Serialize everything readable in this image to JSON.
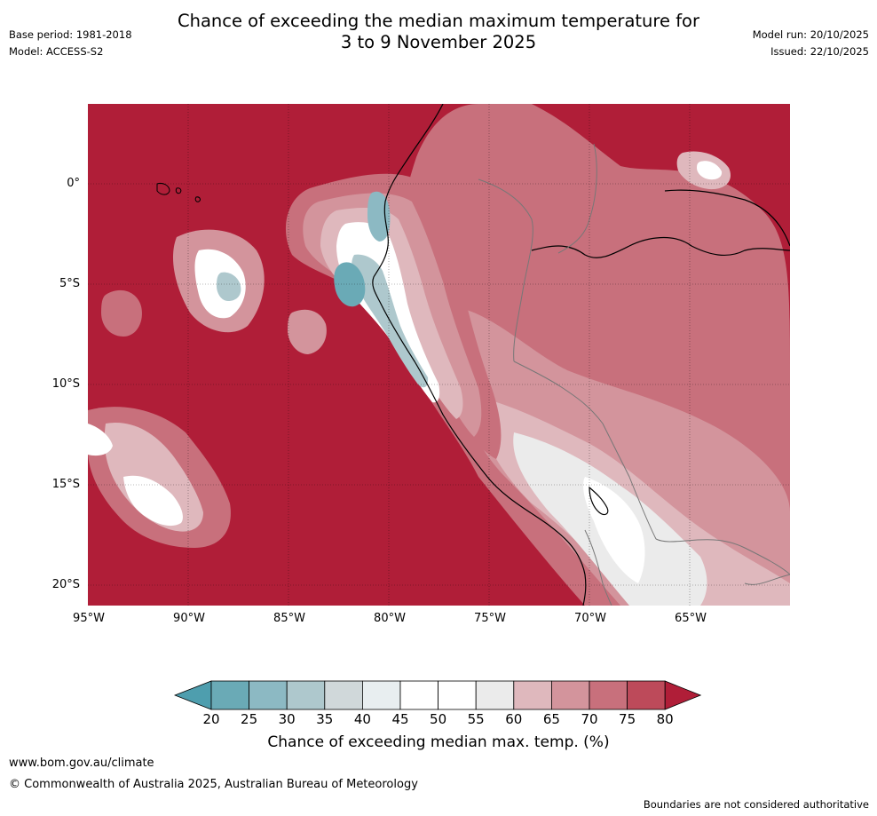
{
  "title": {
    "line1": "Chance of exceeding the median maximum temperature for",
    "line2": "3 to 9 November 2025"
  },
  "meta": {
    "base_period": "Base period: 1981-2018",
    "model": "Model: ACCESS-S2",
    "model_run": "Model run: 20/10/2025",
    "issued": "Issued: 22/10/2025"
  },
  "map": {
    "lat_labels": [
      "0°",
      "5°S",
      "10°S",
      "15°S",
      "20°S"
    ],
    "lon_labels": [
      "95°W",
      "90°W",
      "85°W",
      "80°W",
      "75°W",
      "70°W",
      "65°W"
    ],
    "background_color": "#b01e38"
  },
  "colorbar": {
    "ticks": [
      "20",
      "25",
      "30",
      "35",
      "40",
      "45",
      "50",
      "55",
      "60",
      "65",
      "70",
      "75",
      "80"
    ],
    "colors": [
      "#6aaab6",
      "#8cb9c3",
      "#aec8cd",
      "#d0d8da",
      "#e8eef0",
      "#ffffff",
      "#ffffff",
      "#ebebeb",
      "#dfb8bd",
      "#d3949c",
      "#c8707c",
      "#bd4a5a",
      "#b01e38"
    ],
    "under_color": "#4e9eae",
    "over_color": "#b01e38",
    "title": "Chance of exceeding median max. temp. (%)"
  },
  "footer": {
    "website": "www.bom.gov.au/climate",
    "copyright": "© Commonwealth of Australia 2025, Australian Bureau of Meteorology",
    "disclaimer": "Boundaries are not considered authoritative"
  }
}
